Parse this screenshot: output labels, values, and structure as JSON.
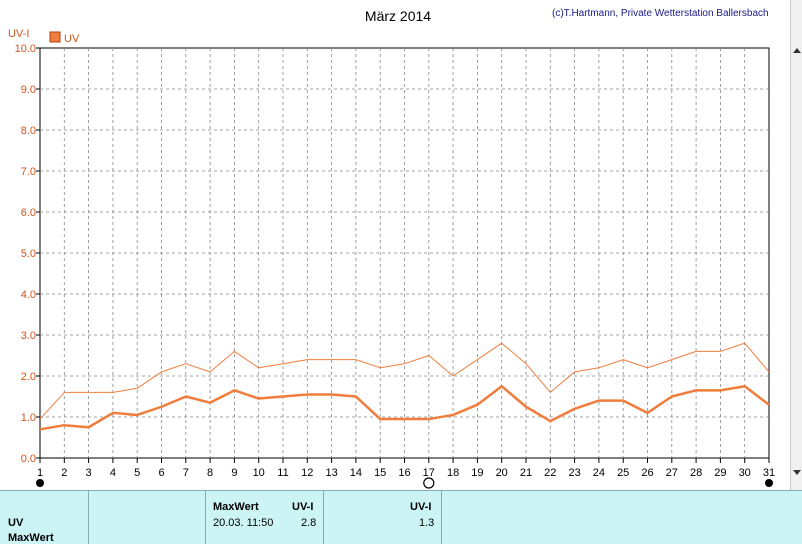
{
  "title": "März 2014",
  "copyright": "(c)T.Hartmann, Private Wetterstation Ballersbach",
  "colors": {
    "axis_text": "#d2551e",
    "series": "#f07d3c",
    "grid": "#888888",
    "panel_bg": "#ccf4f5"
  },
  "chart_data": {
    "type": "line",
    "ylabel": "UV-I",
    "ylim": [
      0,
      10
    ],
    "yticks": [
      "0.0",
      "1.0",
      "2.0",
      "3.0",
      "4.0",
      "5.0",
      "6.0",
      "7.0",
      "8.0",
      "9.0",
      "10.0"
    ],
    "x": [
      1,
      2,
      3,
      4,
      5,
      6,
      7,
      8,
      9,
      10,
      11,
      12,
      13,
      14,
      15,
      16,
      17,
      18,
      19,
      20,
      21,
      22,
      23,
      24,
      25,
      26,
      27,
      28,
      29,
      30,
      31
    ],
    "xlim": [
      1,
      31
    ],
    "legend": {
      "label": "UV",
      "position": "top-left"
    },
    "grid": true,
    "series": [
      {
        "name": "UV",
        "style": "thick",
        "values": [
          0.7,
          0.8,
          0.75,
          1.1,
          1.05,
          1.25,
          1.5,
          1.35,
          1.65,
          1.45,
          1.5,
          1.55,
          1.55,
          1.5,
          0.95,
          0.95,
          0.95,
          1.05,
          1.3,
          1.75,
          1.25,
          0.9,
          1.2,
          1.4,
          1.4,
          1.1,
          1.5,
          1.65,
          1.65,
          1.75,
          1.3
        ]
      },
      {
        "style": "thin",
        "values": [
          0.95,
          1.6,
          1.6,
          1.6,
          1.7,
          2.1,
          2.3,
          2.1,
          2.6,
          2.2,
          2.3,
          2.4,
          2.4,
          2.4,
          2.2,
          2.3,
          2.5,
          2.0,
          2.4,
          2.8,
          2.3,
          1.6,
          2.1,
          2.2,
          2.4,
          2.2,
          2.4,
          2.6,
          2.6,
          2.8,
          2.1
        ]
      }
    ],
    "markers": [
      {
        "day": 1,
        "symbol": "filled-circle"
      },
      {
        "day": 17,
        "symbol": "open-circle"
      },
      {
        "day": 31,
        "symbol": "filled-circle"
      }
    ]
  },
  "table": {
    "row_labels": [
      "UV",
      "MaxWert"
    ],
    "header_maxwert": "MaxWert",
    "header_unit1": "UV-I",
    "header_unit2": "UV-I",
    "max_datetime": "20.03.  11:50",
    "max_value": "2.8",
    "avg_value": "1.3"
  }
}
